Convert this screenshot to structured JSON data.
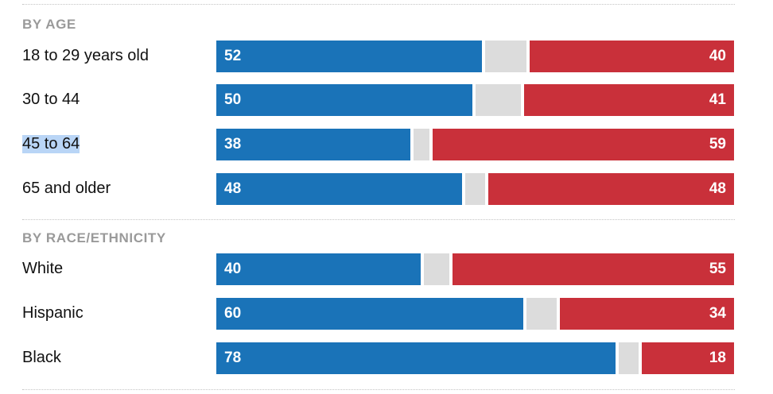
{
  "colors": {
    "dem": "#1a73b8",
    "other": "#dcdcdc",
    "rep": "#c9303a",
    "highlight": "#b9d5f6"
  },
  "chart_data": {
    "type": "bar",
    "orientation": "horizontal",
    "stacked": true,
    "groups": [
      {
        "title": "BY AGE",
        "rows": [
          {
            "label": "18 to 29 years old",
            "left": 52,
            "right": 40,
            "highlighted": false
          },
          {
            "label": "30 to 44",
            "left": 50,
            "right": 41,
            "highlighted": false
          },
          {
            "label": "45 to 64",
            "left": 38,
            "right": 59,
            "highlighted": true
          },
          {
            "label": "65 and older",
            "left": 48,
            "right": 48,
            "highlighted": false
          }
        ]
      },
      {
        "title": "BY RACE/ETHNICITY",
        "rows": [
          {
            "label": "White",
            "left": 40,
            "right": 55,
            "highlighted": false
          },
          {
            "label": "Hispanic",
            "left": 60,
            "right": 34,
            "highlighted": false
          },
          {
            "label": "Black",
            "left": 78,
            "right": 18,
            "highlighted": false
          }
        ]
      }
    ]
  }
}
